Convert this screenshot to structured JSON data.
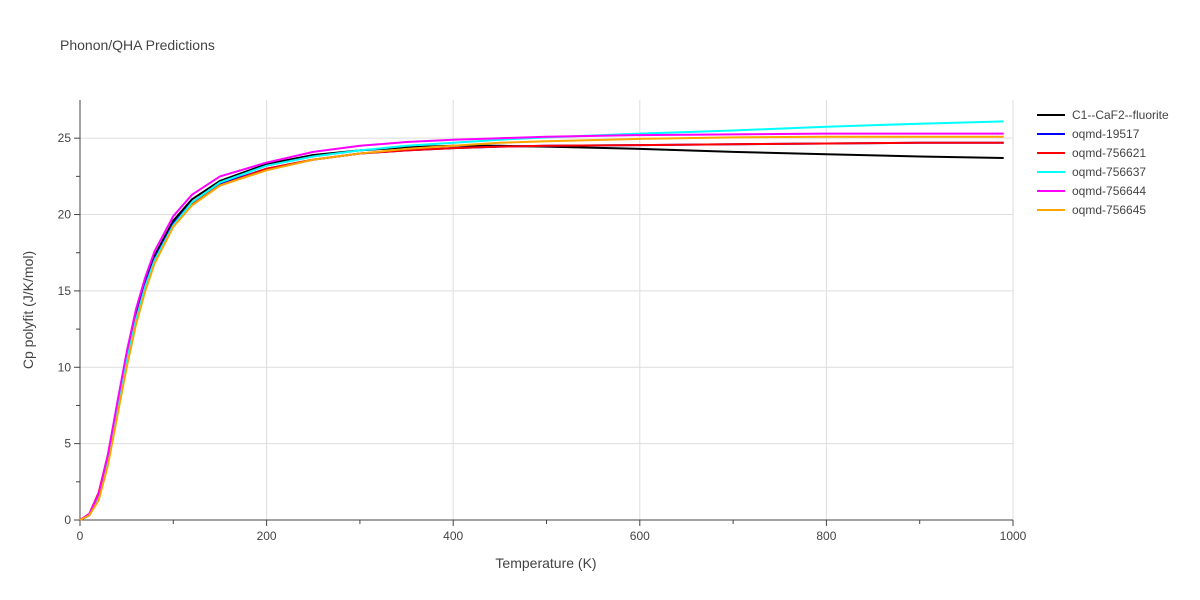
{
  "chart_data": {
    "type": "line",
    "title": "Phonon/QHA Predictions",
    "xlabel": "Temperature (K)",
    "ylabel": "Cp polyfit (J/K/mol)",
    "xlim": [
      0,
      1000
    ],
    "ylim": [
      0,
      27.5
    ],
    "xticks": [
      0,
      200,
      400,
      600,
      800,
      1000
    ],
    "yticks": [
      0,
      5,
      10,
      15,
      20,
      25
    ],
    "grid": true,
    "legend_position": "top-right",
    "series": [
      {
        "name": "C1--CaF2--fluorite",
        "color": "#000000",
        "x": [
          0,
          10,
          20,
          30,
          40,
          50,
          60,
          70,
          80,
          100,
          120,
          150,
          200,
          250,
          300,
          350,
          400,
          450,
          500,
          600,
          700,
          800,
          900,
          990
        ],
        "y": [
          0,
          0.3,
          1.5,
          4.0,
          7.3,
          10.6,
          13.4,
          15.6,
          17.3,
          19.6,
          21.0,
          22.2,
          23.3,
          23.9,
          24.2,
          24.4,
          24.5,
          24.5,
          24.45,
          24.3,
          24.1,
          23.95,
          23.8,
          23.7
        ]
      },
      {
        "name": "oqmd-19517",
        "color": "#0000ff",
        "x": [
          0,
          10,
          20,
          30,
          40,
          50,
          60,
          70,
          80,
          100,
          120,
          150,
          200,
          250,
          300,
          350,
          400,
          450,
          500,
          600,
          700,
          800,
          900,
          990
        ],
        "y": [
          0,
          0.3,
          1.6,
          4.1,
          7.4,
          10.6,
          13.3,
          15.5,
          17.1,
          19.4,
          20.8,
          22.0,
          23.0,
          23.6,
          24.0,
          24.2,
          24.35,
          24.45,
          24.5,
          24.55,
          24.6,
          24.65,
          24.7,
          24.7
        ]
      },
      {
        "name": "oqmd-756621",
        "color": "#ff0000",
        "x": [
          0,
          10,
          20,
          30,
          40,
          50,
          60,
          70,
          80,
          100,
          120,
          150,
          200,
          250,
          300,
          350,
          400,
          450,
          500,
          600,
          700,
          800,
          900,
          990
        ],
        "y": [
          0,
          0.4,
          1.8,
          4.3,
          7.5,
          10.6,
          13.2,
          15.3,
          17.0,
          19.3,
          20.7,
          21.9,
          23.0,
          23.6,
          24.0,
          24.2,
          24.35,
          24.45,
          24.5,
          24.55,
          24.6,
          24.65,
          24.7,
          24.7
        ]
      },
      {
        "name": "oqmd-756637",
        "color": "#00ffff",
        "x": [
          0,
          10,
          20,
          30,
          40,
          50,
          60,
          70,
          80,
          100,
          120,
          150,
          200,
          250,
          300,
          350,
          400,
          450,
          500,
          600,
          700,
          800,
          900,
          990
        ],
        "y": [
          0,
          0.3,
          1.5,
          3.9,
          7.2,
          10.4,
          13.1,
          15.3,
          17.0,
          19.3,
          20.8,
          22.1,
          23.2,
          23.8,
          24.2,
          24.5,
          24.7,
          24.9,
          25.05,
          25.3,
          25.5,
          25.75,
          25.95,
          26.1
        ]
      },
      {
        "name": "oqmd-756644",
        "color": "#ff00ff",
        "x": [
          0,
          10,
          20,
          30,
          40,
          50,
          60,
          70,
          80,
          100,
          120,
          150,
          200,
          250,
          300,
          350,
          400,
          450,
          500,
          600,
          700,
          800,
          900,
          990
        ],
        "y": [
          0,
          0.4,
          1.7,
          4.3,
          7.7,
          11.0,
          13.8,
          15.9,
          17.6,
          19.9,
          21.3,
          22.5,
          23.4,
          24.1,
          24.5,
          24.75,
          24.9,
          25.0,
          25.1,
          25.2,
          25.25,
          25.3,
          25.3,
          25.3
        ]
      },
      {
        "name": "oqmd-756645",
        "color": "#ffa500",
        "x": [
          0,
          10,
          20,
          30,
          40,
          50,
          60,
          70,
          80,
          100,
          120,
          150,
          200,
          250,
          300,
          350,
          400,
          450,
          500,
          600,
          700,
          800,
          900,
          990
        ],
        "y": [
          0,
          0.3,
          1.3,
          3.6,
          6.8,
          10.0,
          12.8,
          15.0,
          16.8,
          19.2,
          20.6,
          21.9,
          22.9,
          23.6,
          24.0,
          24.3,
          24.5,
          24.7,
          24.8,
          24.95,
          25.05,
          25.1,
          25.1,
          25.1
        ]
      }
    ]
  }
}
